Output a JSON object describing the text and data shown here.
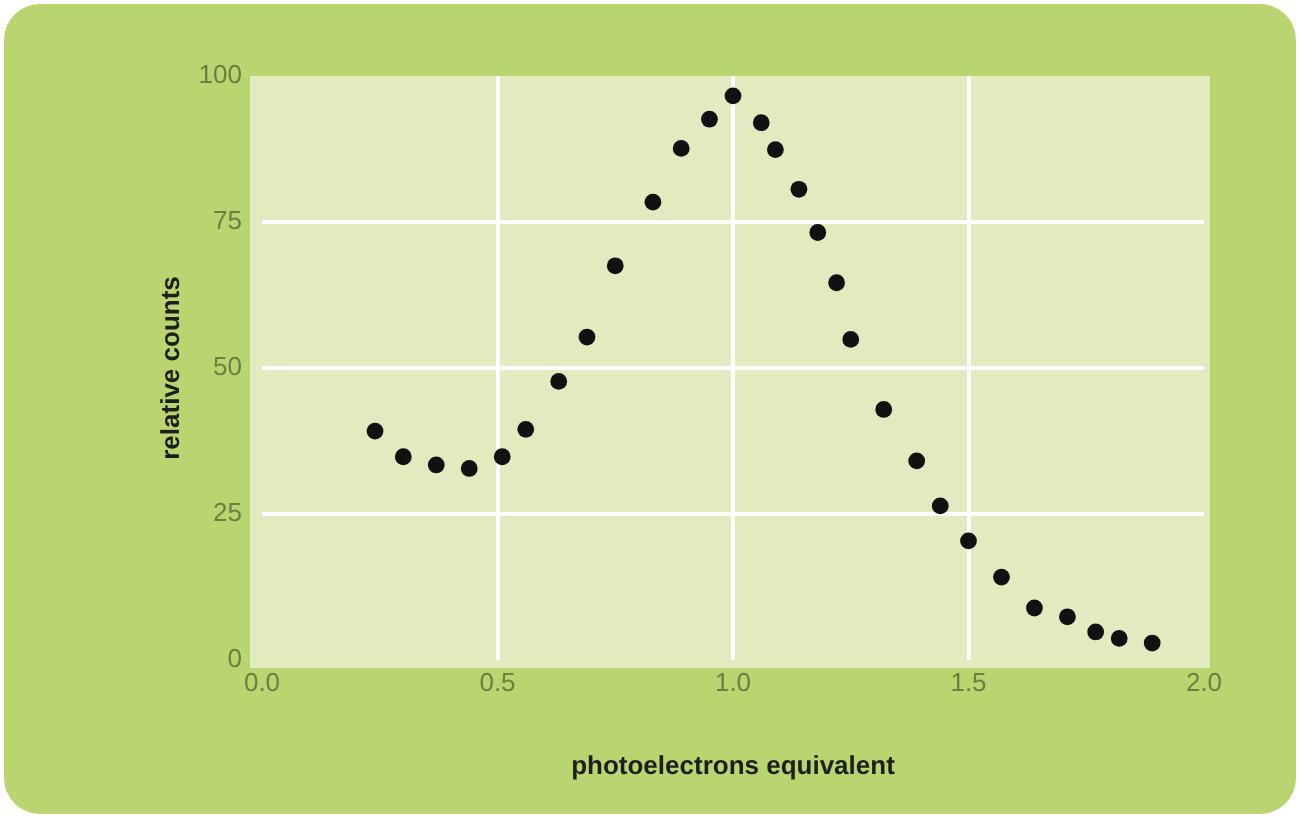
{
  "chart_data": {
    "type": "scatter",
    "xlabel": "photoelectrons equivalent",
    "ylabel": "relative counts",
    "x": [
      0.24,
      0.3,
      0.37,
      0.44,
      0.51,
      0.56,
      0.63,
      0.69,
      0.75,
      0.83,
      0.89,
      0.95,
      1.0,
      1.06,
      1.09,
      1.14,
      1.18,
      1.22,
      1.25,
      1.32,
      1.39,
      1.44,
      1.5,
      1.57,
      1.64,
      1.71,
      1.77,
      1.82,
      1.89
    ],
    "series": [
      {
        "color": "#111111",
        "values": [
          39.2,
          34.8,
          33.4,
          32.8,
          34.8,
          39.5,
          47.7,
          55.3,
          67.5,
          78.4,
          87.6,
          92.6,
          96.6,
          92.0,
          87.4,
          80.6,
          73.2,
          64.6,
          54.9,
          42.9,
          34.1,
          26.4,
          20.4,
          14.2,
          8.9,
          7.4,
          4.8,
          3.7,
          2.9
        ]
      }
    ],
    "xlim": [
      0,
      2
    ],
    "xticks": [
      {
        "value": 0,
        "label": "0.0"
      },
      0.5,
      {
        "value": 1,
        "label": "1.0"
      },
      1.5,
      {
        "value": 2,
        "label": "2.0"
      }
    ],
    "ylim": [
      0,
      100
    ],
    "yticks": [
      0,
      25,
      50,
      75,
      100
    ],
    "grid": true,
    "marker": "circle",
    "legend": false
  }
}
